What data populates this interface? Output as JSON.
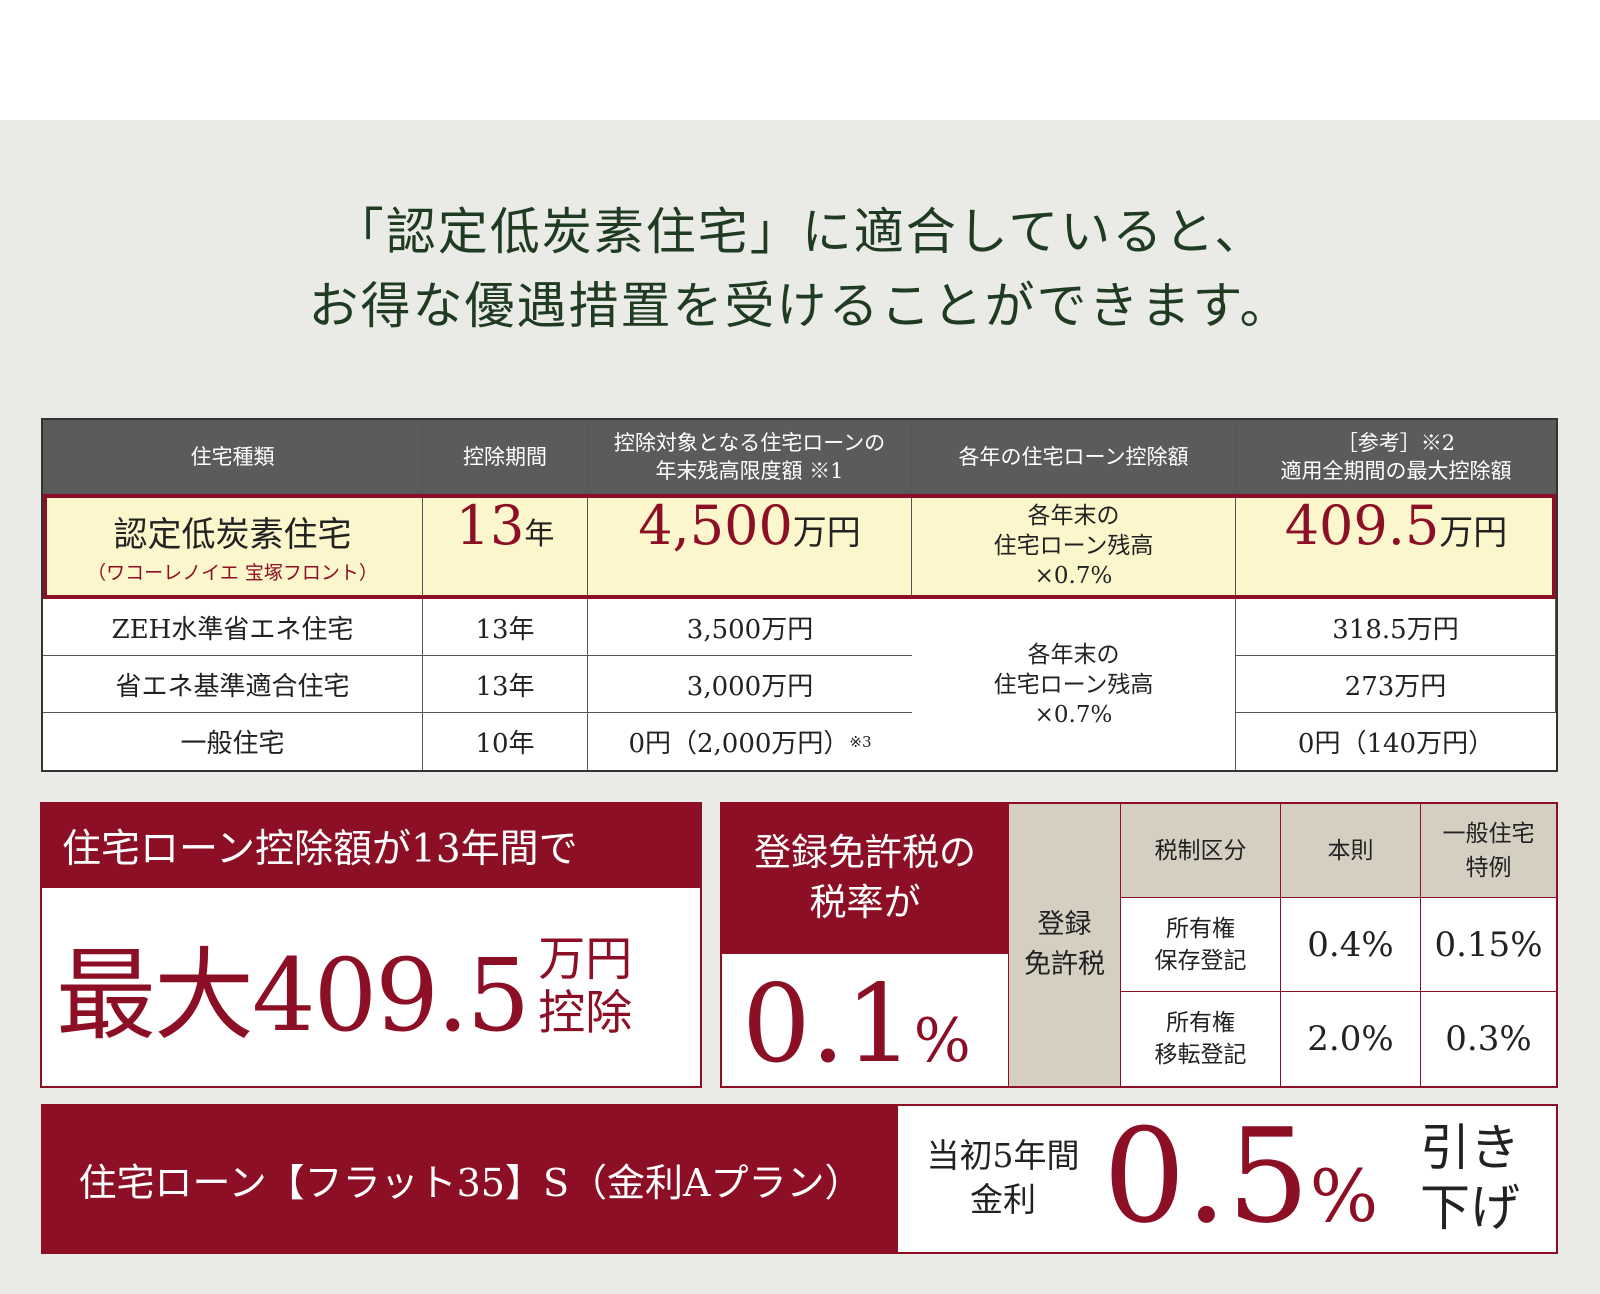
{
  "headline": {
    "line1": "「認定低炭素住宅」に適合していると、",
    "line2": "お得な優遇措置を受けることができます。"
  },
  "table": {
    "headers": {
      "type": "住宅種類",
      "period": "控除期間",
      "limit_line1": "控除対象となる住宅ローンの",
      "limit_line2": "年末残高限度額 ※1",
      "deduction": "各年の住宅ローン控除額",
      "max_line1": "［参考］※2",
      "max_line2": "適用全期間の最大控除額"
    },
    "highlight": {
      "name": "認定低炭素住宅",
      "sub": "（ワコーレノイエ 宝塚フロント）",
      "period_num": "13",
      "period_unit": "年",
      "limit_num": "4,500",
      "limit_unit": "万円",
      "ded_line1": "各年末の",
      "ded_line2": "住宅ローン残高",
      "ded_line3": "×0.7%",
      "max_num": "409.5",
      "max_unit": "万円"
    },
    "rows": [
      {
        "type": "ZEH水準省エネ住宅",
        "period": "13年",
        "limit": "3,500万円",
        "max": "318.5万円"
      },
      {
        "type": "省エネ基準適合住宅",
        "period": "13年",
        "limit": "3,000万円",
        "max": "273万円"
      },
      {
        "type": "一般住宅",
        "period": "10年",
        "limit": "0円（2,000万円）",
        "limit_note": "※3",
        "max": "0円（140万円）"
      }
    ],
    "merged_deduction": {
      "line1": "各年末の",
      "line2": "住宅ローン残高",
      "line3": "×0.7%"
    }
  },
  "box1": {
    "caption": "住宅ローン控除額が13年間で",
    "value": "最大409.5",
    "unit_line1": "万円",
    "unit_line2": "控除"
  },
  "box2": {
    "caption_line1": "登録免許税の",
    "caption_line2": "税率が",
    "value": "0.1",
    "percent": "%",
    "table": {
      "row_label_line1": "登録",
      "row_label_line2": "免許税",
      "head_cat": "税制区分",
      "head_rule": "本則",
      "head_special_line1": "一般住宅",
      "head_special_line2": "特例",
      "r1_label_line1": "所有権",
      "r1_label_line2": "保存登記",
      "r1_rule": "0.4%",
      "r1_special": "0.15%",
      "r2_label_line1": "所有権",
      "r2_label_line2": "移転登記",
      "r2_rule": "2.0%",
      "r2_special": "0.3%"
    }
  },
  "box3": {
    "caption": "住宅ローン【フラット35】S（金利Aプラン）",
    "label_line1": "当初5年間",
    "label_line2": "金利",
    "value": "0.5",
    "percent": "%",
    "suffix_line1": "引き",
    "suffix_line2": "下げ"
  },
  "colors": {
    "accent": "#8c0f25",
    "headline": "#1f3b22",
    "header_bg": "#5b5b5b",
    "highlight_bg": "#fbf6cc",
    "panel_bg": "#eaebe6"
  }
}
